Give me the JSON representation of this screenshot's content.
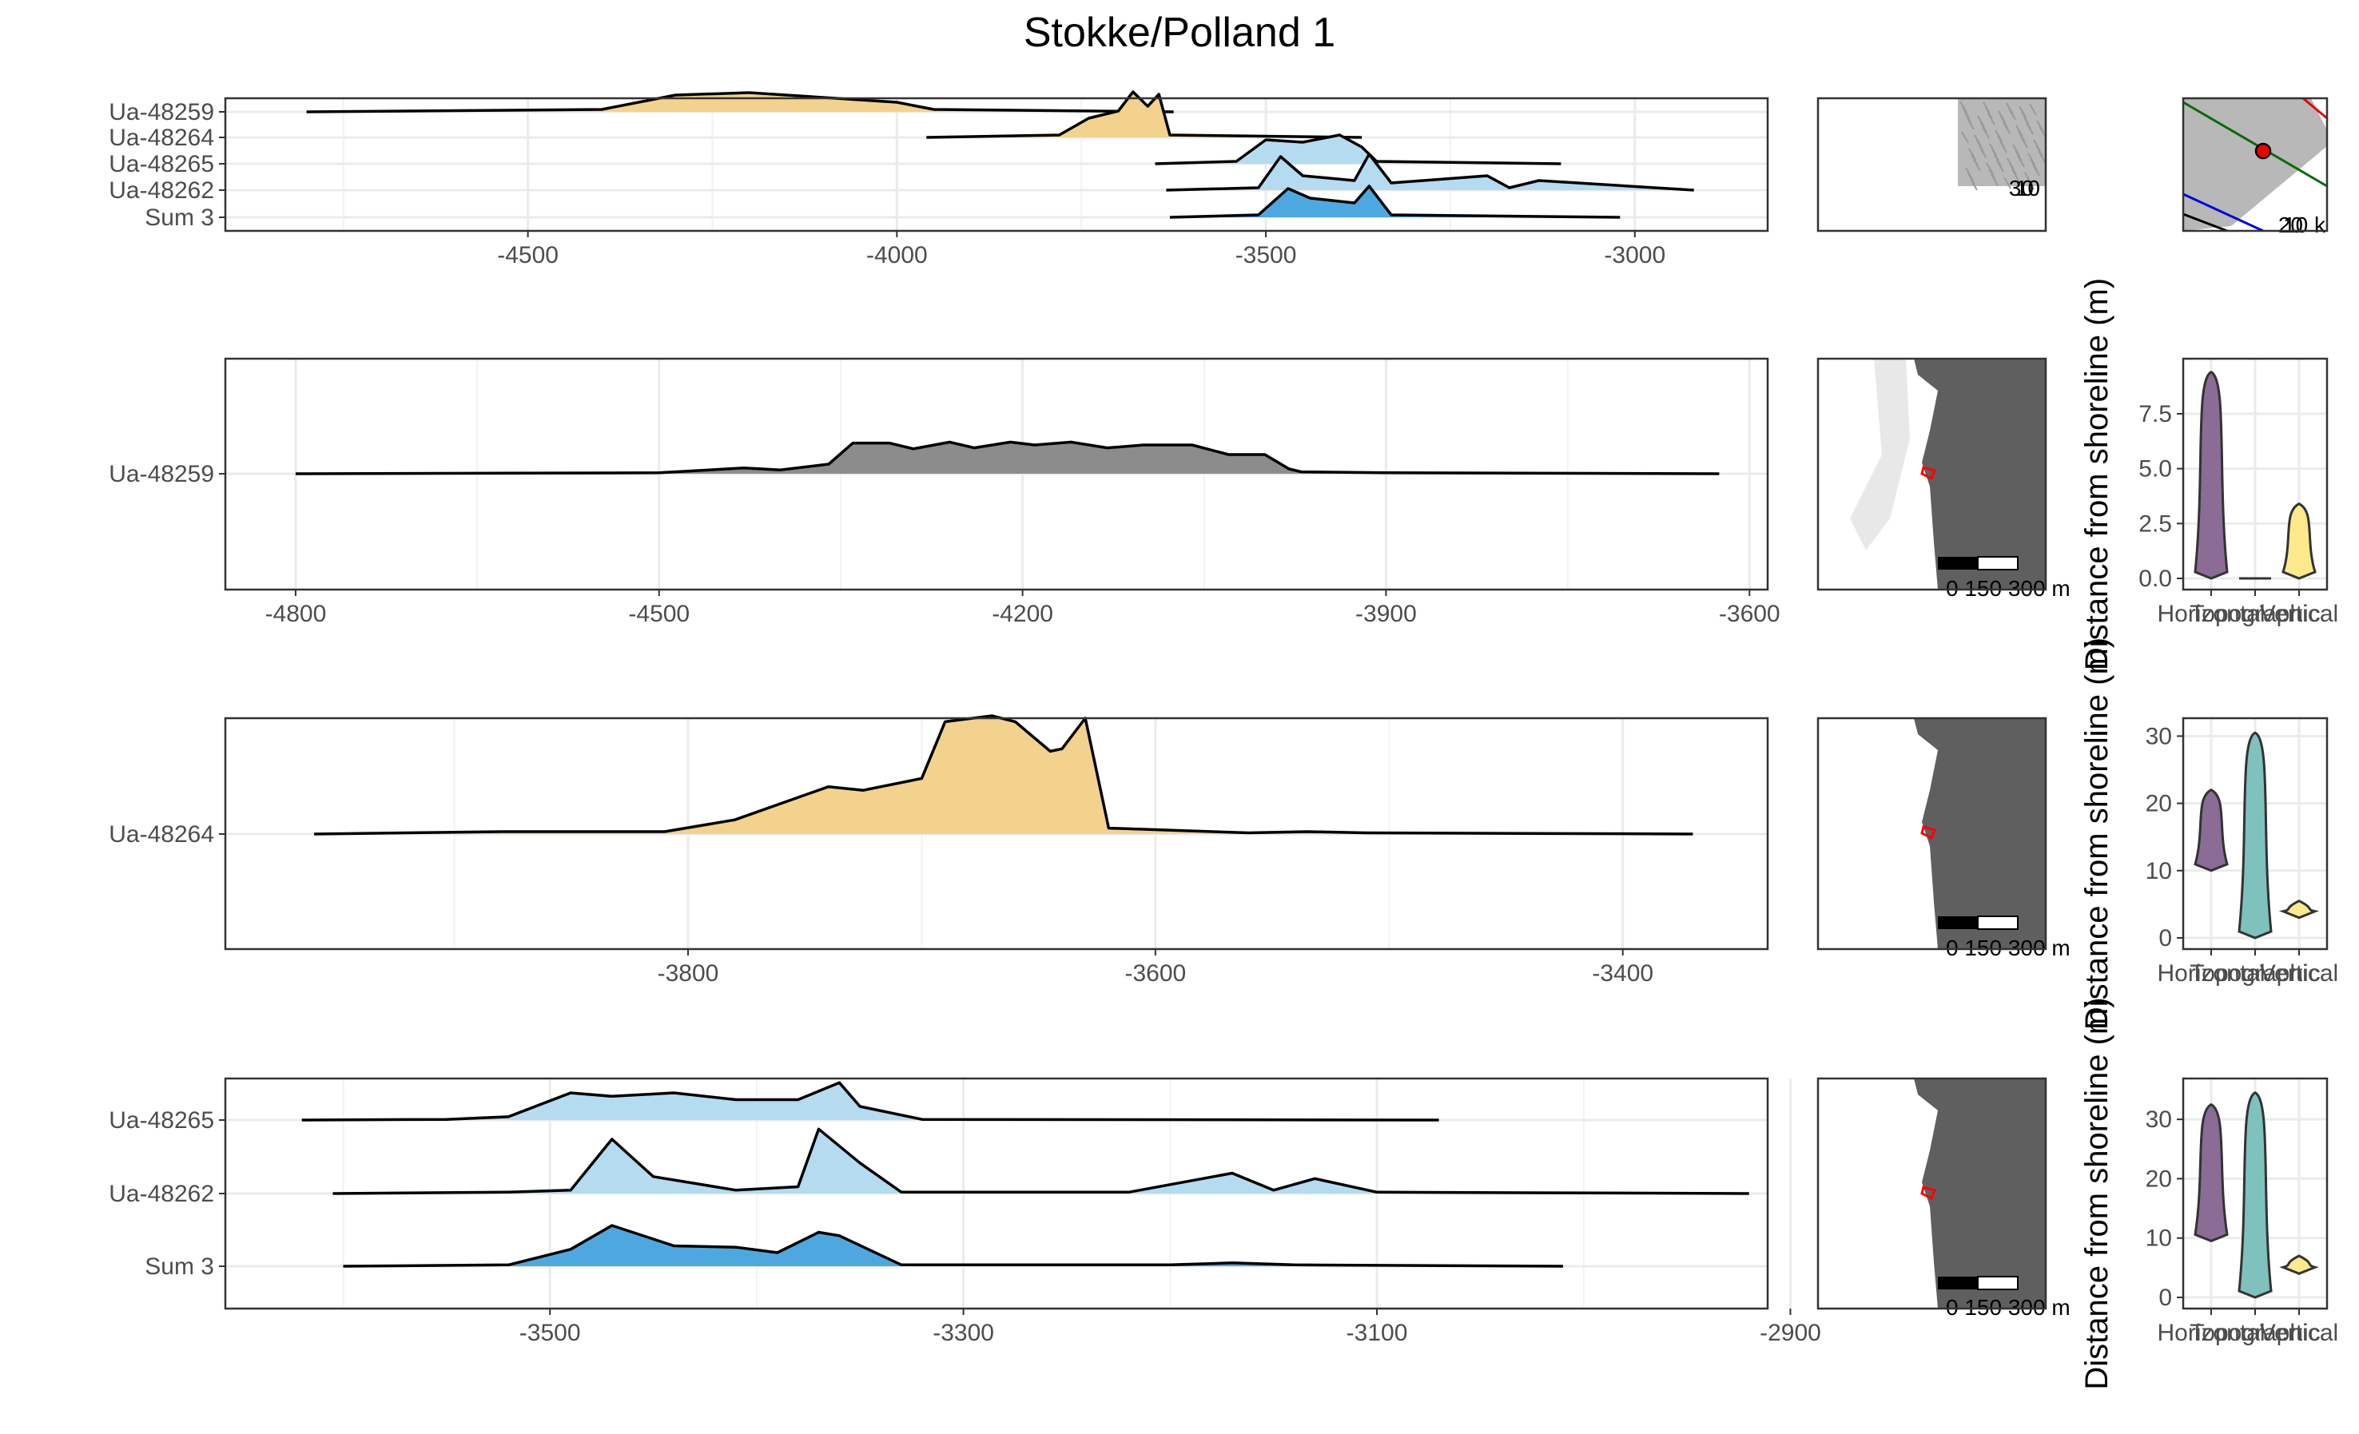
{
  "title": "Stokke/Polland 1",
  "colors": {
    "grey": "#8c8c8c",
    "gold": "#f2d28d",
    "lightblue": "#b5dbf1",
    "blue": "#4ea8e0",
    "purple": "#8a6c96",
    "teal": "#7fc1bd",
    "yellow": "#fbe98b",
    "land": "#5f5f5f",
    "water": "#ffffff",
    "marker": "#ff0000"
  },
  "violin_categories": [
    "Horizontal",
    "Topographic",
    "Vertical"
  ],
  "violin_ylabel": "Distance from shoreline (m)",
  "scale_bar_label": "0 150 300 m",
  "overview_map_labels": [
    "30",
    "10"
  ],
  "locator_map_labels": [
    "20",
    "10 k"
  ],
  "chart_data": [
    {
      "type": "area",
      "panel": "overview",
      "xlim": [
        -4910,
        -2820
      ],
      "xticks": [
        -4500,
        -4000,
        -3500,
        -3000
      ],
      "series": [
        {
          "name": "Ua-48259",
          "color": "gold",
          "x": [
            -4800,
            -4400,
            -4300,
            -4200,
            -4100,
            -4000,
            -3950,
            -3625
          ],
          "y": [
            0,
            0.05,
            0.35,
            0.4,
            0.3,
            0.2,
            0.05,
            0
          ]
        },
        {
          "name": "Ua-48264",
          "color": "gold",
          "x": [
            -3960,
            -3780,
            -3740,
            -3700,
            -3680,
            -3660,
            -3645,
            -3630,
            -3370
          ],
          "y": [
            0,
            0.05,
            0.4,
            0.55,
            0.95,
            0.65,
            0.9,
            0.05,
            0
          ]
        },
        {
          "name": "Ua-48265",
          "color": "lightblue",
          "x": [
            -3650,
            -3540,
            -3500,
            -3450,
            -3400,
            -3370,
            -3350,
            -3100
          ],
          "y": [
            0,
            0.05,
            0.5,
            0.45,
            0.6,
            0.35,
            0.05,
            0
          ]
        },
        {
          "name": "Ua-48262",
          "color": "lightblue",
          "x": [
            -3635,
            -3510,
            -3480,
            -3450,
            -3380,
            -3360,
            -3330,
            -3200,
            -3170,
            -3130,
            -2920
          ],
          "y": [
            0,
            0.05,
            0.7,
            0.3,
            0.2,
            0.75,
            0.15,
            0.3,
            0.05,
            0.2,
            0
          ]
        },
        {
          "name": "Sum 3",
          "color": "blue",
          "x": [
            -3630,
            -3510,
            -3470,
            -3440,
            -3380,
            -3360,
            -3330,
            -3020
          ],
          "y": [
            0,
            0.05,
            0.6,
            0.4,
            0.3,
            0.65,
            0.05,
            0
          ]
        }
      ]
    },
    {
      "type": "area",
      "panel": "Ua-48259",
      "xlim": [
        -4858,
        -3585
      ],
      "xticks": [
        -4800,
        -4500,
        -4200,
        -3900,
        -3600
      ],
      "series": [
        {
          "name": "Ua-48259",
          "color": "grey",
          "x": [
            -4800,
            -4500,
            -4430,
            -4400,
            -4360,
            -4340,
            -4310,
            -4290,
            -4260,
            -4240,
            -4210,
            -4190,
            -4160,
            -4130,
            -4100,
            -4060,
            -4030,
            -4000,
            -3980,
            -3970,
            -3900,
            -3625
          ],
          "y": [
            0,
            0.01,
            0.06,
            0.04,
            0.1,
            0.32,
            0.32,
            0.26,
            0.33,
            0.27,
            0.33,
            0.3,
            0.33,
            0.27,
            0.3,
            0.3,
            0.2,
            0.2,
            0.05,
            0.02,
            0.01,
            0
          ]
        }
      ]
    },
    {
      "type": "area",
      "panel": "Ua-48264",
      "xlim": [
        -3998,
        -3338
      ],
      "xticks": [
        -3800,
        -3600,
        -3400
      ],
      "series": [
        {
          "name": "Ua-48264",
          "color": "gold",
          "x": [
            -3960,
            -3880,
            -3810,
            -3780,
            -3740,
            -3725,
            -3700,
            -3690,
            -3670,
            -3660,
            -3645,
            -3640,
            -3630,
            -3620,
            -3560,
            -3535,
            -3510,
            -3370
          ],
          "y": [
            0,
            0.02,
            0.02,
            0.12,
            0.4,
            0.37,
            0.47,
            0.95,
            1.0,
            0.95,
            0.7,
            0.72,
            0.98,
            0.05,
            0.01,
            0.02,
            0.01,
            0
          ]
        }
      ]
    },
    {
      "type": "area",
      "panel": "bottom",
      "xlim": [
        -3657,
        -2911
      ],
      "xticks": [
        -3500,
        -3300,
        -3100,
        -2900
      ],
      "series": [
        {
          "name": "Ua-48265",
          "color": "lightblue",
          "x": [
            -3620,
            -3550,
            -3520,
            -3490,
            -3470,
            -3440,
            -3410,
            -3380,
            -3360,
            -3350,
            -3320,
            -3070
          ],
          "y": [
            0,
            0.01,
            0.05,
            0.4,
            0.35,
            0.4,
            0.3,
            0.3,
            0.55,
            0.2,
            0.01,
            0
          ]
        },
        {
          "name": "Ua-48262",
          "color": "lightblue",
          "x": [
            -3605,
            -3520,
            -3490,
            -3470,
            -3450,
            -3410,
            -3380,
            -3370,
            -3350,
            -3330,
            -3220,
            -3170,
            -3150,
            -3130,
            -3100,
            -2920
          ],
          "y": [
            0,
            0.02,
            0.05,
            0.8,
            0.25,
            0.05,
            0.1,
            0.95,
            0.45,
            0.02,
            0.02,
            0.3,
            0.05,
            0.22,
            0.02,
            0
          ]
        },
        {
          "name": "Sum 3",
          "color": "blue",
          "x": [
            -3600,
            -3520,
            -3490,
            -3470,
            -3440,
            -3410,
            -3390,
            -3370,
            -3360,
            -3330,
            -3200,
            -3170,
            -3140,
            -3010
          ],
          "y": [
            0,
            0.02,
            0.25,
            0.6,
            0.3,
            0.28,
            0.2,
            0.5,
            0.45,
            0.02,
            0.02,
            0.05,
            0.02,
            0
          ]
        }
      ]
    },
    {
      "type": "violin",
      "panel": "Ua-48259",
      "ylim": [
        0,
        9.5
      ],
      "yticks": [
        0.0,
        2.5,
        5.0,
        7.5
      ],
      "ytick_labels": [
        "0.0",
        "2.5",
        "5.0",
        "7.5"
      ],
      "groups": [
        {
          "name": "Horizontal",
          "color": "purple",
          "min": 0,
          "max": 9.4
        },
        {
          "name": "Topographic",
          "color": "teal",
          "min": 0,
          "max": 0
        },
        {
          "name": "Vertical",
          "color": "yellow",
          "min": 0,
          "max": 3.4
        }
      ]
    },
    {
      "type": "violin",
      "panel": "Ua-48264",
      "ylim": [
        0,
        31
      ],
      "yticks": [
        0,
        10,
        20,
        30
      ],
      "ytick_labels": [
        "0",
        "10",
        "20",
        "30"
      ],
      "groups": [
        {
          "name": "Horizontal",
          "color": "purple",
          "min": 10,
          "max": 22
        },
        {
          "name": "Topographic",
          "color": "teal",
          "min": 0,
          "max": 30.5
        },
        {
          "name": "Vertical",
          "color": "yellow",
          "min": 3,
          "max": 5.5
        }
      ]
    },
    {
      "type": "violin",
      "panel": "bottom",
      "ylim": [
        0,
        35
      ],
      "yticks": [
        0,
        10,
        20,
        30
      ],
      "ytick_labels": [
        "0",
        "10",
        "20",
        "30"
      ],
      "groups": [
        {
          "name": "Horizontal",
          "color": "purple",
          "min": 9.5,
          "max": 32.5
        },
        {
          "name": "Topographic",
          "color": "teal",
          "min": 0,
          "max": 34.5
        },
        {
          "name": "Vertical",
          "color": "yellow",
          "min": 4,
          "max": 7
        }
      ]
    }
  ]
}
